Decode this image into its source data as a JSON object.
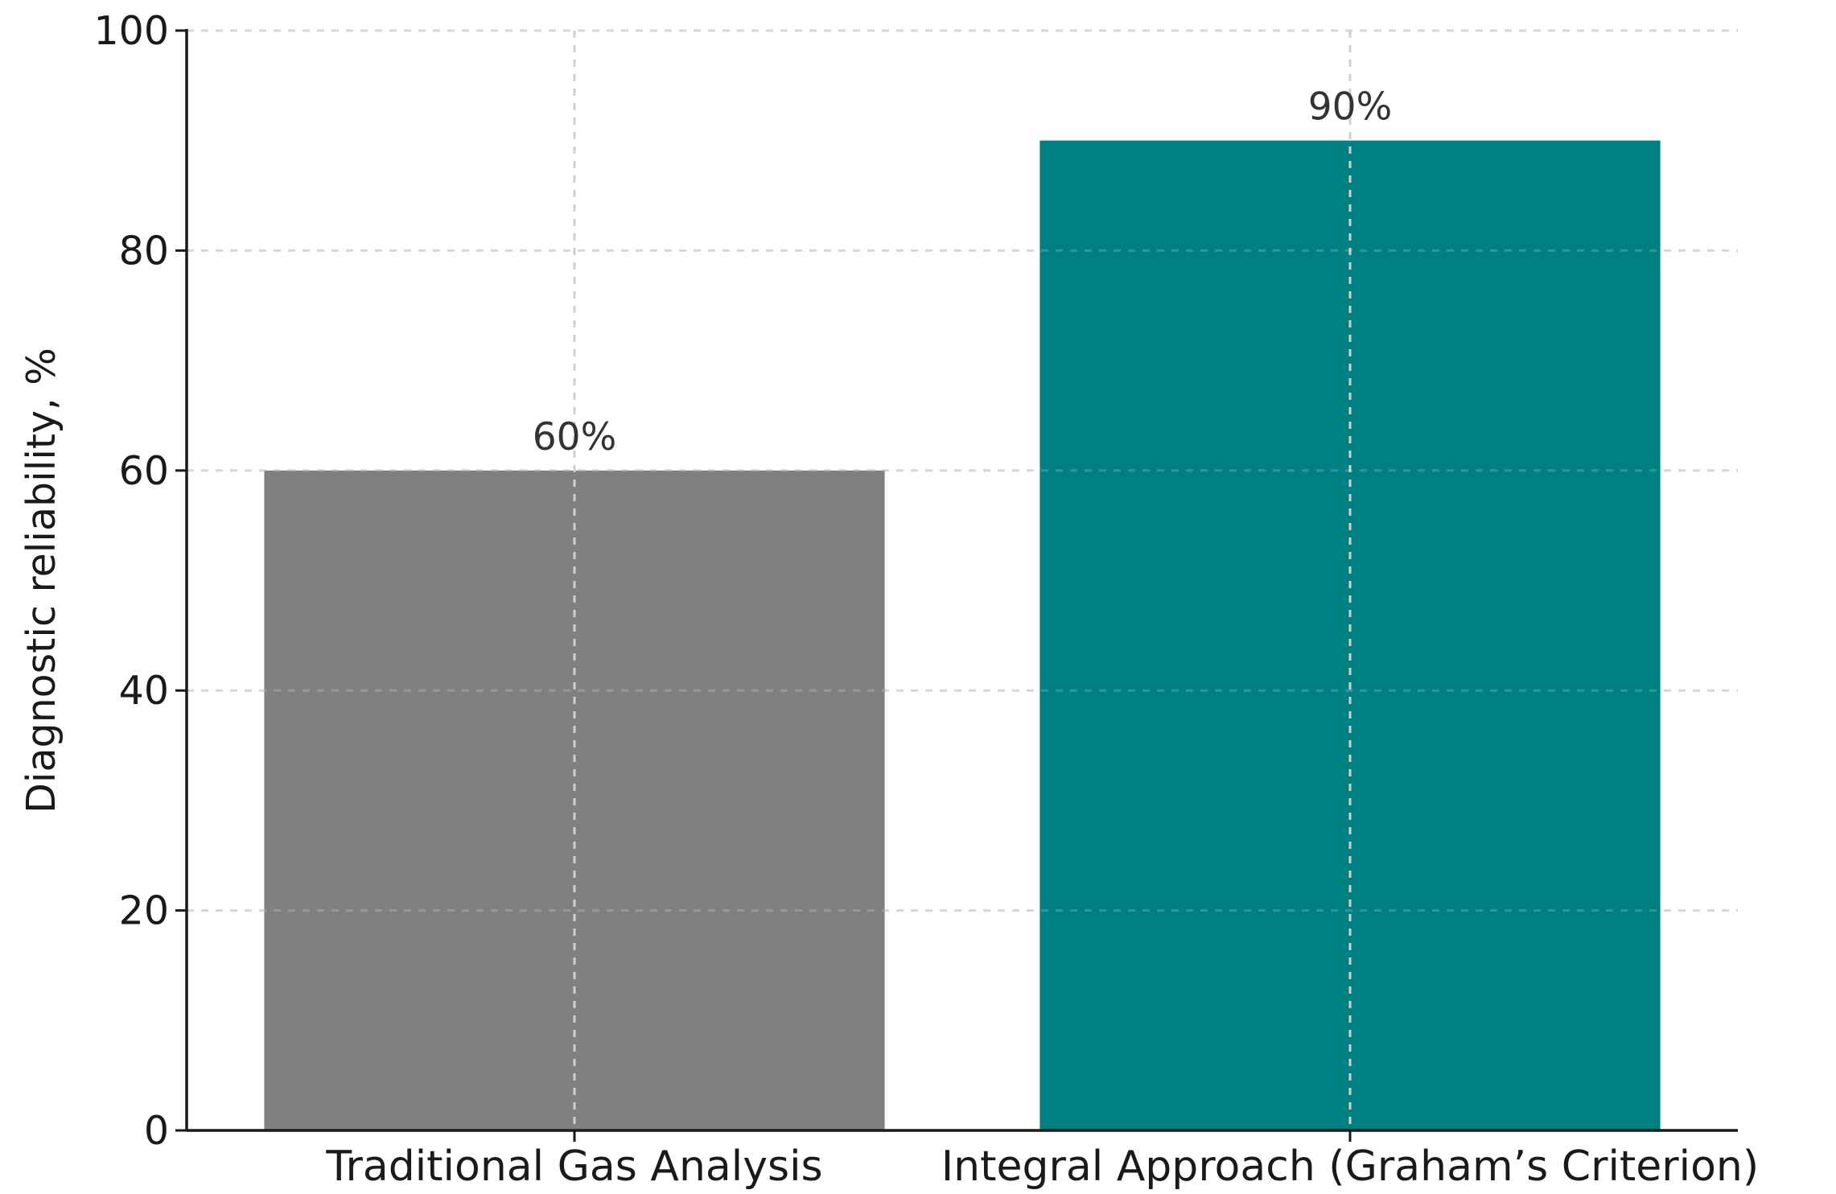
{
  "chart_data": {
    "type": "bar",
    "categories": [
      "Traditional Gas Analysis",
      "Integral Approach (Graham’s Criterion)"
    ],
    "values": [
      60,
      90
    ],
    "data_labels": [
      "60%",
      "90%"
    ],
    "colors": [
      "#808080",
      "#008080"
    ],
    "title": "",
    "xlabel": "",
    "ylabel": "Diagnostic reliability, %",
    "ylim": [
      0,
      100
    ],
    "yticks": [
      0,
      20,
      40,
      60,
      80,
      100
    ],
    "grid": true,
    "grid_style": "dashed",
    "legend": "none"
  }
}
